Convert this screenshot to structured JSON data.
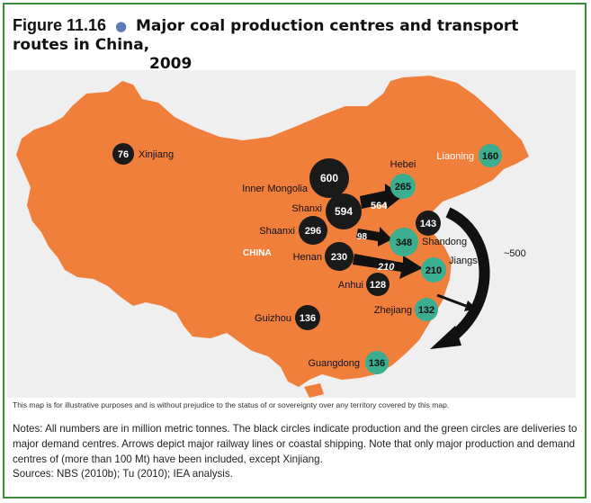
{
  "title": {
    "figure": "Figure 11.16",
    "bullet": "●",
    "text_line1": "Major coal production centres and transport routes in China,",
    "text_line2": "2009"
  },
  "map": {
    "country_label": "CHINA",
    "colors": {
      "land": "#f07f3c",
      "background": "#efefef",
      "production": "#1a1a1a",
      "demand": "#3aae8e",
      "frame": "#3d8a3a"
    },
    "production_centres": [
      {
        "name": "Xinjiang",
        "value": "76"
      },
      {
        "name": "Inner Mongolia",
        "value": "600"
      },
      {
        "name": "Shanxi",
        "value": "594"
      },
      {
        "name": "Shaanxi",
        "value": "296"
      },
      {
        "name": "Henan",
        "value": "230"
      },
      {
        "name": "Anhui",
        "value": "128"
      },
      {
        "name": "Guizhou",
        "value": "136"
      },
      {
        "name": "Shandong",
        "value": "143"
      }
    ],
    "demand_centres": [
      {
        "name": "Hebei",
        "value": "265"
      },
      {
        "name": "Liaoning",
        "value": "160"
      },
      {
        "name": "Shandong",
        "value": "348"
      },
      {
        "name": "Jiangsu",
        "value": "210"
      },
      {
        "name": "Zhejiang",
        "value": "132"
      },
      {
        "name": "Guangdong",
        "value": "136"
      }
    ],
    "flows": [
      {
        "from": "Shanxi",
        "to": "Hebei",
        "value": "564"
      },
      {
        "from": "Shanxi",
        "to": "Shandong",
        "value": "98"
      },
      {
        "from": "Henan",
        "to": "Jiangsu",
        "value": "210"
      },
      {
        "from": "Shandong",
        "to": "Guangdong",
        "value": "~500"
      }
    ]
  },
  "disclaimer": "This map is for illustrative purposes and is without prejudice to the status of or sovereignty over any territory covered by this map.",
  "notes": "Notes: All numbers are in million metric tonnes. The black circles indicate production and the green circles are deliveries to major demand centres. Arrows depict major railway lines or coastal shipping. Note that only major production and demand centres of (more than 100 Mt) have been included, except Xinjiang.",
  "sources": "Sources: NBS (2010b); Tu (2010); IEA analysis."
}
